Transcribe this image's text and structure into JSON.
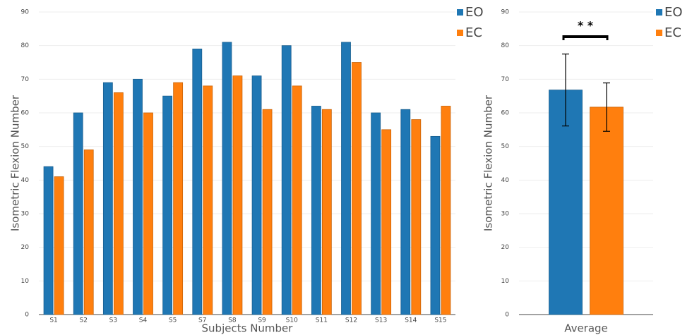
{
  "chart_data": [
    {
      "type": "bar",
      "ylabel": "Isometric Flexion Number",
      "xlabel": "Subjects Number",
      "categories": [
        "S1",
        "S2",
        "S3",
        "S4",
        "S5",
        "S7",
        "S8",
        "S9",
        "S10",
        "S11",
        "S12",
        "S13",
        "S14",
        "S15"
      ],
      "series": [
        {
          "name": "EO",
          "color": "#1f77b4",
          "values": [
            44,
            60,
            69,
            70,
            65,
            79,
            81,
            71,
            80,
            62,
            81,
            60,
            61,
            53
          ]
        },
        {
          "name": "EC",
          "color": "#ff7f0e",
          "values": [
            41,
            49,
            66,
            60,
            69,
            68,
            71,
            61,
            68,
            61,
            75,
            55,
            58,
            62
          ]
        }
      ],
      "ylim": [
        0,
        90
      ],
      "yticks": [
        0,
        10,
        20,
        30,
        40,
        50,
        60,
        70,
        80,
        90
      ],
      "grid": true,
      "legend": "top-right"
    },
    {
      "type": "bar",
      "ylabel": "Isometric Flexion Number",
      "xlabel": "Average",
      "categories": [
        null
      ],
      "series": [
        {
          "name": "EO",
          "color": "#1f77b4",
          "values": [
            66.8
          ],
          "errors": [
            10.7
          ]
        },
        {
          "name": "EC",
          "color": "#ff7f0e",
          "values": [
            61.7
          ],
          "errors": [
            7.2
          ]
        }
      ],
      "annotation": "* *",
      "ylim": [
        0,
        90
      ],
      "yticks": [
        0,
        10,
        20,
        30,
        40,
        50,
        60,
        70,
        80,
        90
      ],
      "grid": true,
      "legend": "top-right"
    }
  ]
}
